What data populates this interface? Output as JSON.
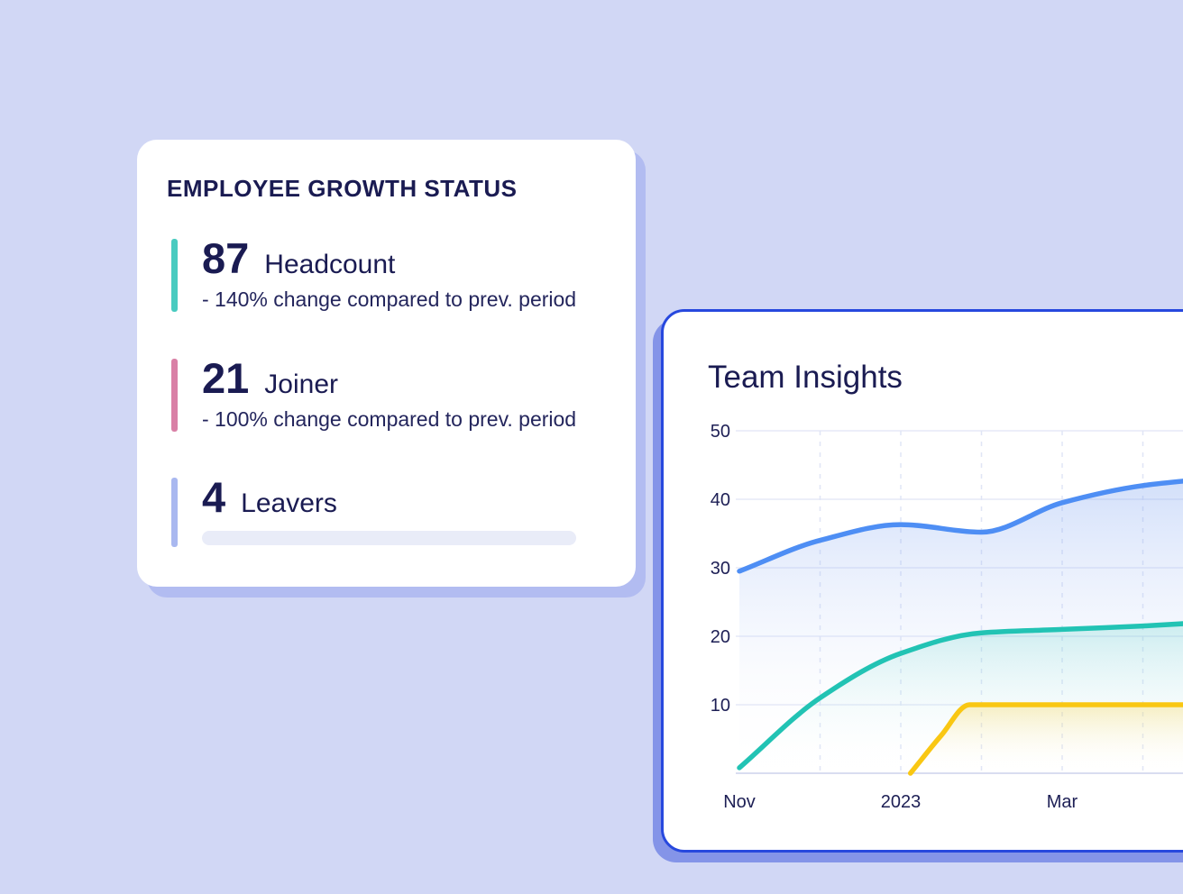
{
  "growth_card": {
    "title": "EMPLOYEE GROWTH STATUS",
    "stats": [
      {
        "value": "87",
        "label": "Headcount",
        "change": "- 140%  change compared to prev. period",
        "accent_color": "#49CBC0"
      },
      {
        "value": "21",
        "label": "Joiner",
        "change": "- 100% change compared to prev. period",
        "accent_color": "#D980A6"
      },
      {
        "value": "4",
        "label": "Leavers",
        "change": "",
        "accent_color": "#A9B8F0"
      }
    ]
  },
  "insights_card": {
    "title": "Team Insights"
  },
  "chart_data": {
    "type": "area",
    "title": "Team Insights",
    "xlabel": "",
    "ylabel": "",
    "ylim": [
      0,
      50
    ],
    "y_ticks": [
      10,
      20,
      30,
      40,
      50
    ],
    "x_tick_labels": [
      {
        "label": "Nov",
        "month": 0
      },
      {
        "label": "2023",
        "month": 2
      },
      {
        "label": "Mar",
        "month": 4
      }
    ],
    "months_total": 7,
    "legend": "none",
    "grid": {
      "horizontal": true,
      "vertical_dashed_months": [
        1,
        2,
        3,
        4,
        5,
        6
      ]
    },
    "series": [
      {
        "name": "series-blue",
        "color": "#4E8EF4",
        "fill_from": "rgba(105,148,238,0.30)",
        "fill_to": "rgba(255,255,255,0)",
        "points": [
          [
            0,
            29.5
          ],
          [
            1,
            34
          ],
          [
            2,
            36.3
          ],
          [
            3,
            35.2
          ],
          [
            4,
            39.5
          ],
          [
            5,
            42
          ],
          [
            6,
            43.2
          ]
        ]
      },
      {
        "name": "series-teal",
        "color": "#22C3B4",
        "fill_from": "rgba(40,195,182,0.20)",
        "fill_to": "rgba(255,255,255,0)",
        "points": [
          [
            0,
            0.8
          ],
          [
            1,
            11
          ],
          [
            2,
            17.5
          ],
          [
            3,
            20.5
          ],
          [
            4,
            21
          ],
          [
            5,
            21.5
          ],
          [
            6,
            22.2
          ]
        ]
      },
      {
        "name": "series-yellow",
        "color": "#F9C713",
        "fill_from": "rgba(250,200,20,0.25)",
        "fill_to": "rgba(255,255,255,0)",
        "shadow": true,
        "points": [
          [
            2.12,
            0
          ],
          [
            2.5,
            5.5
          ],
          [
            2.85,
            10
          ],
          [
            4,
            10
          ],
          [
            5,
            10
          ],
          [
            6,
            10
          ]
        ]
      }
    ]
  },
  "colors": {
    "background": "#D1D7F5",
    "card_background": "#FFFFFF",
    "text_navy": "#1A1B52",
    "axis_label": "#1D1F55",
    "gridline": "#E6E9F7",
    "insights_border": "#2748DE",
    "insights_shadow": "#8494E8",
    "growth_shadow": "#B2BCF1",
    "progress_track": "#E9ECF8"
  }
}
